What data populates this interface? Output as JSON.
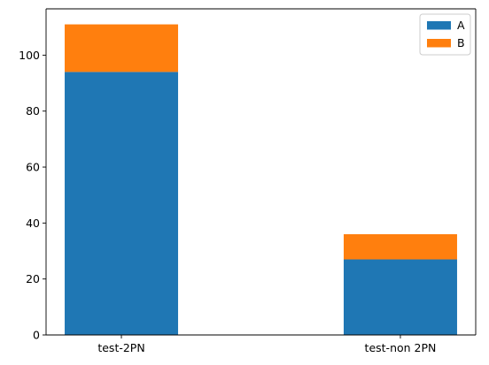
{
  "chart_data": {
    "type": "bar",
    "stacked": true,
    "categories": [
      "test-2PN",
      "test-non 2PN"
    ],
    "series": [
      {
        "name": "A",
        "values": [
          94,
          27
        ],
        "color": "#1f77b4"
      },
      {
        "name": "B",
        "values": [
          17,
          9
        ],
        "color": "#ff7f0e"
      }
    ],
    "title": "",
    "xlabel": "",
    "ylabel": "",
    "ylim": [
      0,
      116.55
    ],
    "yticks": [
      0,
      20,
      40,
      60,
      80,
      100
    ],
    "grid": false,
    "legend_position": "top-right"
  }
}
